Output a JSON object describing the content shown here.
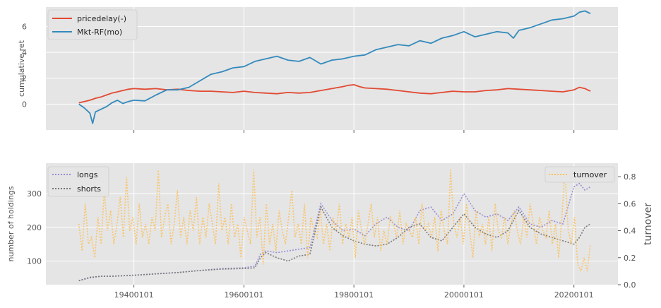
{
  "chart_data": [
    {
      "type": "line",
      "ylabel": "cumulative ret",
      "xlim": [
        1924,
        2028
      ],
      "ylim": [
        -2.0,
        7.5
      ],
      "yticks": [
        0,
        2,
        4,
        6
      ],
      "xticks": [
        1940,
        1960,
        1980,
        2000,
        2020
      ],
      "grid": true,
      "legend_position": "upper-left",
      "series": [
        {
          "name": "pricedelay(-)",
          "color": "#e24a33",
          "x": [
            1930,
            1931,
            1932,
            1933,
            1934,
            1935,
            1936,
            1937,
            1938,
            1939,
            1940,
            1942,
            1944,
            1946,
            1948,
            1950,
            1952,
            1954,
            1956,
            1958,
            1960,
            1962,
            1964,
            1966,
            1968,
            1970,
            1972,
            1974,
            1976,
            1978,
            1979,
            1980,
            1981,
            1982,
            1984,
            1986,
            1988,
            1990,
            1992,
            1994,
            1996,
            1998,
            2000,
            2002,
            2004,
            2006,
            2008,
            2010,
            2012,
            2014,
            2016,
            2018,
            2020,
            2021,
            2022,
            2023
          ],
          "y": [
            0.1,
            0.2,
            0.3,
            0.45,
            0.55,
            0.7,
            0.85,
            0.95,
            1.05,
            1.15,
            1.2,
            1.15,
            1.2,
            1.1,
            1.15,
            1.05,
            1.0,
            1.0,
            0.95,
            0.9,
            1.0,
            0.9,
            0.85,
            0.8,
            0.9,
            0.85,
            0.9,
            1.05,
            1.2,
            1.35,
            1.45,
            1.5,
            1.35,
            1.25,
            1.2,
            1.15,
            1.05,
            0.95,
            0.85,
            0.8,
            0.9,
            1.0,
            0.95,
            0.95,
            1.05,
            1.1,
            1.2,
            1.15,
            1.1,
            1.05,
            1.0,
            0.95,
            1.1,
            1.3,
            1.2,
            1.0
          ]
        },
        {
          "name": "Mkt-RF(mo)",
          "color": "#348abd",
          "x": [
            1930,
            1931,
            1932,
            1932.5,
            1933,
            1934,
            1935,
            1936,
            1937,
            1938,
            1939,
            1940,
            1942,
            1944,
            1946,
            1948,
            1950,
            1952,
            1954,
            1956,
            1958,
            1960,
            1962,
            1964,
            1966,
            1968,
            1970,
            1972,
            1974,
            1976,
            1978,
            1980,
            1982,
            1984,
            1986,
            1988,
            1990,
            1992,
            1994,
            1996,
            1998,
            2000,
            2002,
            2004,
            2006,
            2008,
            2009,
            2010,
            2012,
            2014,
            2016,
            2018,
            2020,
            2021,
            2022,
            2023
          ],
          "y": [
            0.0,
            -0.3,
            -0.7,
            -1.5,
            -0.6,
            -0.4,
            -0.2,
            0.1,
            0.3,
            0.05,
            0.2,
            0.3,
            0.25,
            0.7,
            1.1,
            1.1,
            1.3,
            1.8,
            2.3,
            2.5,
            2.8,
            2.9,
            3.3,
            3.5,
            3.7,
            3.4,
            3.3,
            3.6,
            3.1,
            3.4,
            3.5,
            3.7,
            3.8,
            4.2,
            4.4,
            4.6,
            4.5,
            4.9,
            4.7,
            5.1,
            5.3,
            5.6,
            5.2,
            5.4,
            5.6,
            5.5,
            5.1,
            5.7,
            5.9,
            6.2,
            6.5,
            6.6,
            6.8,
            7.1,
            7.2,
            7.0
          ]
        }
      ]
    },
    {
      "type": "line",
      "ylabel": "number of holdings",
      "y2label": "turnover",
      "xlim": [
        1924,
        2028
      ],
      "ylim": [
        30,
        390
      ],
      "y2lim": [
        0.0,
        0.9
      ],
      "yticks": [
        100,
        200,
        300
      ],
      "y2ticks": [
        0.0,
        0.2,
        0.4,
        0.6,
        0.8
      ],
      "xticks": [
        1940,
        1960,
        1980,
        2000,
        2020
      ],
      "xticklabels": [
        "19400101",
        "19600101",
        "19800101",
        "20000101",
        "20200101"
      ],
      "grid": true,
      "legend_position": "upper-left",
      "legend2_position": "upper-right",
      "series": [
        {
          "name": "longs",
          "axis": "left",
          "color": "#988ed5",
          "x": [
            1930,
            1932,
            1934,
            1936,
            1940,
            1944,
            1948,
            1952,
            1956,
            1960,
            1962,
            1963,
            1964,
            1966,
            1968,
            1970,
            1972,
            1974,
            1976,
            1978,
            1980,
            1982,
            1984,
            1986,
            1988,
            1990,
            1992,
            1994,
            1996,
            1998,
            2000,
            2002,
            2004,
            2006,
            2008,
            2010,
            2012,
            2014,
            2016,
            2018,
            2020,
            2021,
            2022,
            2023
          ],
          "y": [
            42,
            50,
            55,
            55,
            58,
            62,
            66,
            72,
            78,
            80,
            85,
            120,
            130,
            125,
            130,
            135,
            140,
            270,
            220,
            190,
            195,
            175,
            210,
            230,
            200,
            190,
            250,
            260,
            220,
            240,
            300,
            250,
            230,
            240,
            220,
            260,
            210,
            200,
            220,
            210,
            320,
            330,
            310,
            320
          ]
        },
        {
          "name": "shorts",
          "axis": "left",
          "color": "#777777",
          "x": [
            1930,
            1932,
            1934,
            1936,
            1940,
            1944,
            1948,
            1952,
            1956,
            1960,
            1962,
            1963,
            1964,
            1966,
            1968,
            1970,
            1972,
            1974,
            1976,
            1978,
            1980,
            1982,
            1984,
            1986,
            1988,
            1990,
            1992,
            1994,
            1996,
            1998,
            2000,
            2002,
            2004,
            2006,
            2008,
            2010,
            2012,
            2014,
            2016,
            2018,
            2020,
            2021,
            2022,
            2023
          ],
          "y": [
            42,
            52,
            55,
            55,
            58,
            62,
            66,
            72,
            76,
            78,
            80,
            110,
            125,
            110,
            100,
            115,
            120,
            260,
            200,
            175,
            160,
            150,
            145,
            150,
            170,
            200,
            210,
            170,
            160,
            200,
            240,
            200,
            180,
            170,
            190,
            250,
            200,
            180,
            170,
            160,
            150,
            170,
            200,
            210
          ]
        },
        {
          "name": "turnover",
          "axis": "right",
          "color": "#fbc15e",
          "x_start": 1930,
          "x_end": 2023,
          "y": [
            0.45,
            0.25,
            0.6,
            0.3,
            0.35,
            0.2,
            0.5,
            0.3,
            0.7,
            0.4,
            0.55,
            0.3,
            0.45,
            0.65,
            0.35,
            0.8,
            0.4,
            0.5,
            0.3,
            0.6,
            0.35,
            0.45,
            0.3,
            0.5,
            0.4,
            0.85,
            0.35,
            0.5,
            0.6,
            0.3,
            0.45,
            0.7,
            0.35,
            0.5,
            0.3,
            0.55,
            0.4,
            0.65,
            0.3,
            0.5,
            0.35,
            0.6,
            0.45,
            0.3,
            0.75,
            0.4,
            0.5,
            0.3,
            0.6,
            0.35,
            0.45,
            0.2,
            0.5,
            0.4,
            0.3,
            0.85,
            0.35,
            0.5,
            0.15,
            0.6,
            0.3,
            0.45,
            0.25,
            0.55,
            0.4,
            0.3,
            0.5,
            0.7,
            0.35,
            0.45,
            0.3,
            0.6,
            0.2,
            0.5,
            0.4,
            0.35,
            0.55,
            0.3,
            0.45,
            0.25,
            0.5,
            0.4,
            0.6,
            0.3,
            0.45,
            0.35,
            0.5,
            0.2,
            0.55,
            0.4,
            0.3,
            0.45,
            0.6,
            0.35,
            0.5,
            0.25,
            0.4,
            0.3,
            0.5,
            0.45,
            0.35,
            0.55,
            0.3,
            0.45,
            0.4,
            0.35,
            0.5,
            0.3,
            0.6,
            0.4,
            0.45,
            0.35,
            0.5,
            0.25,
            0.55,
            0.4,
            0.3,
            0.85,
            0.45,
            0.35,
            0.5,
            0.3,
            0.6,
            0.4,
            0.2,
            0.55,
            0.35,
            0.45,
            0.3,
            0.5,
            0.25,
            0.6,
            0.4,
            0.35,
            0.5,
            0.3,
            0.45,
            0.55,
            0.4,
            0.3,
            0.5,
            0.35,
            0.6,
            0.45,
            0.3,
            0.5,
            0.4,
            0.35,
            0.55,
            0.3,
            0.45,
            0.2,
            0.5,
            0.85,
            0.4,
            0.3,
            0.5,
            0.15,
            0.1,
            0.2,
            0.1,
            0.3
          ]
        }
      ]
    }
  ]
}
